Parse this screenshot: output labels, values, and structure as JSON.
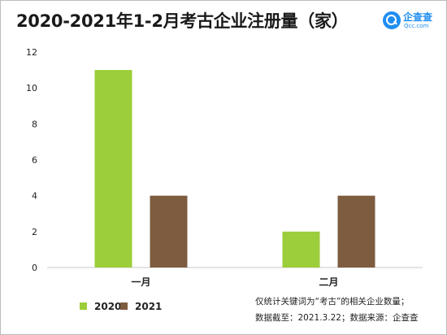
{
  "title": "2020-2021年1-2月考古企业注册量（家）",
  "logo": {
    "name": "企查查",
    "domain": "Qcc.com"
  },
  "colors": {
    "series_2020": "#9ccd3a",
    "series_2021": "#7e5c40",
    "axis": "#c8c8c8",
    "brand": "#1f8ef1"
  },
  "chart_data": {
    "type": "bar",
    "categories": [
      "一月",
      "二月"
    ],
    "series": [
      {
        "name": "2020",
        "values": [
          11,
          2
        ]
      },
      {
        "name": "2021",
        "values": [
          4,
          4
        ]
      }
    ],
    "ylim": [
      0,
      12
    ],
    "yticks": [
      0,
      2,
      4,
      6,
      8,
      10,
      12
    ],
    "grid": false,
    "legend_position": "bottom-left"
  },
  "notes": [
    "仅统计关键词为“考古”的相关企业数量；",
    "数据截至：2021.3.22；数据来源：企查查"
  ]
}
